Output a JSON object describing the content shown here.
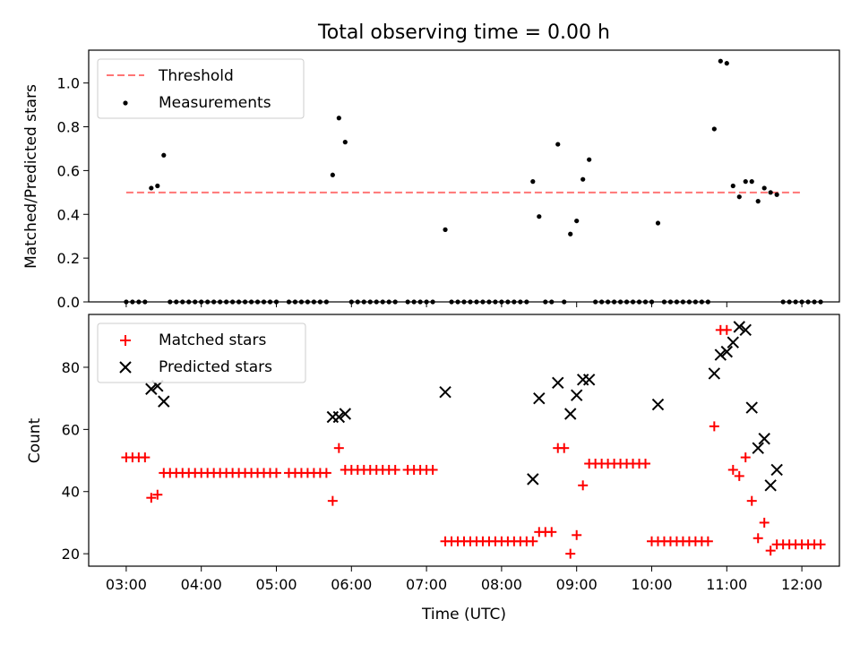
{
  "chart_data": [
    {
      "type": "scatter",
      "title": "Total observing time = 0.00 h",
      "xlabel": "",
      "ylabel": "Matched/Predicted stars",
      "xlim": [
        "02:30",
        "12:30"
      ],
      "ylim": [
        0,
        1.15
      ],
      "yticks": [
        "0.0",
        "0.2",
        "0.4",
        "0.6",
        "0.8",
        "1.0"
      ],
      "legend": {
        "position": "top-left",
        "entries": [
          "Threshold",
          "Measurements"
        ]
      },
      "threshold": {
        "name": "Threshold",
        "value": 0.5,
        "x": [
          "03:00",
          "12:00"
        ],
        "color": "#ff7575"
      },
      "series": [
        {
          "name": "Measurements",
          "color": "#000000",
          "points": [
            [
              "03:00",
              0
            ],
            [
              "03:05",
              0
            ],
            [
              "03:10",
              0
            ],
            [
              "03:15",
              0
            ],
            [
              "03:20",
              0.52
            ],
            [
              "03:25",
              0.53
            ],
            [
              "03:30",
              0.67
            ],
            [
              "03:35",
              0
            ],
            [
              "03:40",
              0
            ],
            [
              "03:45",
              0
            ],
            [
              "03:50",
              0
            ],
            [
              "03:55",
              0
            ],
            [
              "04:00",
              0
            ],
            [
              "04:05",
              0
            ],
            [
              "04:10",
              0
            ],
            [
              "04:15",
              0
            ],
            [
              "04:20",
              0
            ],
            [
              "04:25",
              0
            ],
            [
              "04:30",
              0
            ],
            [
              "04:35",
              0
            ],
            [
              "04:40",
              0
            ],
            [
              "04:45",
              0
            ],
            [
              "04:50",
              0
            ],
            [
              "04:55",
              0
            ],
            [
              "05:00",
              0
            ],
            [
              "05:10",
              0
            ],
            [
              "05:15",
              0
            ],
            [
              "05:20",
              0
            ],
            [
              "05:25",
              0
            ],
            [
              "05:30",
              0
            ],
            [
              "05:35",
              0
            ],
            [
              "05:40",
              0
            ],
            [
              "05:45",
              0.58
            ],
            [
              "05:50",
              0.84
            ],
            [
              "05:55",
              0.73
            ],
            [
              "06:00",
              0
            ],
            [
              "06:05",
              0
            ],
            [
              "06:10",
              0
            ],
            [
              "06:15",
              0
            ],
            [
              "06:20",
              0
            ],
            [
              "06:25",
              0
            ],
            [
              "06:30",
              0
            ],
            [
              "06:35",
              0
            ],
            [
              "06:45",
              0
            ],
            [
              "06:50",
              0
            ],
            [
              "06:55",
              0
            ],
            [
              "07:00",
              0
            ],
            [
              "07:05",
              0
            ],
            [
              "07:15",
              0.33
            ],
            [
              "07:20",
              0
            ],
            [
              "07:25",
              0
            ],
            [
              "07:30",
              0
            ],
            [
              "07:35",
              0
            ],
            [
              "07:40",
              0
            ],
            [
              "07:45",
              0
            ],
            [
              "07:50",
              0
            ],
            [
              "07:55",
              0
            ],
            [
              "08:00",
              0
            ],
            [
              "08:05",
              0
            ],
            [
              "08:10",
              0
            ],
            [
              "08:15",
              0
            ],
            [
              "08:20",
              0
            ],
            [
              "08:25",
              0.55
            ],
            [
              "08:30",
              0.39
            ],
            [
              "08:35",
              0
            ],
            [
              "08:40",
              0
            ],
            [
              "08:45",
              0.72
            ],
            [
              "08:50",
              0
            ],
            [
              "08:55",
              0.31
            ],
            [
              "09:00",
              0.37
            ],
            [
              "09:05",
              0.56
            ],
            [
              "09:10",
              0.65
            ],
            [
              "09:15",
              0
            ],
            [
              "09:20",
              0
            ],
            [
              "09:25",
              0
            ],
            [
              "09:30",
              0
            ],
            [
              "09:35",
              0
            ],
            [
              "09:40",
              0
            ],
            [
              "09:45",
              0
            ],
            [
              "09:50",
              0
            ],
            [
              "09:55",
              0
            ],
            [
              "10:00",
              0
            ],
            [
              "10:05",
              0.36
            ],
            [
              "10:10",
              0
            ],
            [
              "10:15",
              0
            ],
            [
              "10:20",
              0
            ],
            [
              "10:25",
              0
            ],
            [
              "10:30",
              0
            ],
            [
              "10:35",
              0
            ],
            [
              "10:40",
              0
            ],
            [
              "10:45",
              0
            ],
            [
              "10:50",
              0.79
            ],
            [
              "10:55",
              1.1
            ],
            [
              "11:00",
              1.09
            ],
            [
              "11:05",
              0.53
            ],
            [
              "11:10",
              0.48
            ],
            [
              "11:15",
              0.55
            ],
            [
              "11:20",
              0.55
            ],
            [
              "11:25",
              0.46
            ],
            [
              "11:30",
              0.52
            ],
            [
              "11:35",
              0.5
            ],
            [
              "11:40",
              0.49
            ],
            [
              "11:45",
              0
            ],
            [
              "11:50",
              0
            ],
            [
              "11:55",
              0
            ],
            [
              "12:00",
              0
            ],
            [
              "12:05",
              0
            ],
            [
              "12:10",
              0
            ],
            [
              "12:15",
              0
            ]
          ]
        }
      ]
    },
    {
      "type": "scatter",
      "title": "",
      "xlabel": "Time (UTC)",
      "ylabel": "Count",
      "xlim": [
        "02:30",
        "12:30"
      ],
      "ylim": [
        16,
        97
      ],
      "yticks": [
        "20",
        "40",
        "60",
        "80"
      ],
      "xticks": [
        "03:00",
        "04:00",
        "05:00",
        "06:00",
        "07:00",
        "08:00",
        "09:00",
        "10:00",
        "11:00",
        "12:00"
      ],
      "legend": {
        "position": "top-left",
        "entries": [
          "Matched stars",
          "Predicted stars"
        ]
      },
      "series": [
        {
          "name": "Matched stars",
          "color": "#ff0000",
          "marker": "plus",
          "points": [
            [
              "03:00",
              51
            ],
            [
              "03:05",
              51
            ],
            [
              "03:10",
              51
            ],
            [
              "03:15",
              51
            ],
            [
              "03:20",
              38
            ],
            [
              "03:25",
              39
            ],
            [
              "03:30",
              46
            ],
            [
              "03:35",
              46
            ],
            [
              "03:40",
              46
            ],
            [
              "03:45",
              46
            ],
            [
              "03:50",
              46
            ],
            [
              "03:55",
              46
            ],
            [
              "04:00",
              46
            ],
            [
              "04:05",
              46
            ],
            [
              "04:10",
              46
            ],
            [
              "04:15",
              46
            ],
            [
              "04:20",
              46
            ],
            [
              "04:25",
              46
            ],
            [
              "04:30",
              46
            ],
            [
              "04:35",
              46
            ],
            [
              "04:40",
              46
            ],
            [
              "04:45",
              46
            ],
            [
              "04:50",
              46
            ],
            [
              "04:55",
              46
            ],
            [
              "05:00",
              46
            ],
            [
              "05:10",
              46
            ],
            [
              "05:15",
              46
            ],
            [
              "05:20",
              46
            ],
            [
              "05:25",
              46
            ],
            [
              "05:30",
              46
            ],
            [
              "05:35",
              46
            ],
            [
              "05:40",
              46
            ],
            [
              "05:45",
              37
            ],
            [
              "05:50",
              54
            ],
            [
              "05:55",
              47
            ],
            [
              "06:00",
              47
            ],
            [
              "06:05",
              47
            ],
            [
              "06:10",
              47
            ],
            [
              "06:15",
              47
            ],
            [
              "06:20",
              47
            ],
            [
              "06:25",
              47
            ],
            [
              "06:30",
              47
            ],
            [
              "06:35",
              47
            ],
            [
              "06:45",
              47
            ],
            [
              "06:50",
              47
            ],
            [
              "06:55",
              47
            ],
            [
              "07:00",
              47
            ],
            [
              "07:05",
              47
            ],
            [
              "07:15",
              24
            ],
            [
              "07:20",
              24
            ],
            [
              "07:25",
              24
            ],
            [
              "07:30",
              24
            ],
            [
              "07:35",
              24
            ],
            [
              "07:40",
              24
            ],
            [
              "07:45",
              24
            ],
            [
              "07:50",
              24
            ],
            [
              "07:55",
              24
            ],
            [
              "08:00",
              24
            ],
            [
              "08:05",
              24
            ],
            [
              "08:10",
              24
            ],
            [
              "08:15",
              24
            ],
            [
              "08:20",
              24
            ],
            [
              "08:25",
              24
            ],
            [
              "08:30",
              27
            ],
            [
              "08:35",
              27
            ],
            [
              "08:40",
              27
            ],
            [
              "08:45",
              54
            ],
            [
              "08:50",
              54
            ],
            [
              "08:55",
              20
            ],
            [
              "09:00",
              26
            ],
            [
              "09:05",
              42
            ],
            [
              "09:10",
              49
            ],
            [
              "09:15",
              49
            ],
            [
              "09:20",
              49
            ],
            [
              "09:25",
              49
            ],
            [
              "09:30",
              49
            ],
            [
              "09:35",
              49
            ],
            [
              "09:40",
              49
            ],
            [
              "09:45",
              49
            ],
            [
              "09:50",
              49
            ],
            [
              "09:55",
              49
            ],
            [
              "10:00",
              24
            ],
            [
              "10:05",
              24
            ],
            [
              "10:10",
              24
            ],
            [
              "10:15",
              24
            ],
            [
              "10:20",
              24
            ],
            [
              "10:25",
              24
            ],
            [
              "10:30",
              24
            ],
            [
              "10:35",
              24
            ],
            [
              "10:40",
              24
            ],
            [
              "10:45",
              24
            ],
            [
              "10:50",
              61
            ],
            [
              "10:55",
              92
            ],
            [
              "11:00",
              92
            ],
            [
              "11:05",
              47
            ],
            [
              "11:10",
              45
            ],
            [
              "11:15",
              51
            ],
            [
              "11:20",
              37
            ],
            [
              "11:25",
              25
            ],
            [
              "11:30",
              30
            ],
            [
              "11:35",
              21
            ],
            [
              "11:40",
              23
            ],
            [
              "11:45",
              23
            ],
            [
              "11:50",
              23
            ],
            [
              "11:55",
              23
            ],
            [
              "12:00",
              23
            ],
            [
              "12:05",
              23
            ],
            [
              "12:10",
              23
            ],
            [
              "12:15",
              23
            ]
          ]
        },
        {
          "name": "Predicted stars",
          "color": "#000000",
          "marker": "x",
          "points": [
            [
              "03:20",
              73
            ],
            [
              "03:25",
              74
            ],
            [
              "03:30",
              69
            ],
            [
              "05:45",
              64
            ],
            [
              "05:50",
              64
            ],
            [
              "05:55",
              65
            ],
            [
              "07:15",
              72
            ],
            [
              "08:25",
              44
            ],
            [
              "08:30",
              70
            ],
            [
              "08:45",
              75
            ],
            [
              "08:55",
              65
            ],
            [
              "09:00",
              71
            ],
            [
              "09:05",
              76
            ],
            [
              "09:10",
              76
            ],
            [
              "10:05",
              68
            ],
            [
              "10:50",
              78
            ],
            [
              "10:55",
              84
            ],
            [
              "11:00",
              85
            ],
            [
              "11:05",
              88
            ],
            [
              "11:10",
              93
            ],
            [
              "11:15",
              92
            ],
            [
              "11:20",
              67
            ],
            [
              "11:25",
              54
            ],
            [
              "11:30",
              57
            ],
            [
              "11:35",
              42
            ],
            [
              "11:40",
              47
            ]
          ]
        }
      ]
    }
  ]
}
